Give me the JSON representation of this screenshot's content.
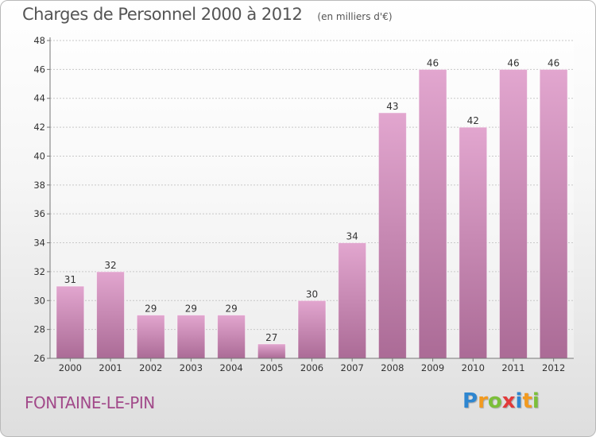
{
  "chart_data": {
    "type": "bar",
    "title": "Charges de Personnel 2000 à 2012",
    "subtitle": "(en milliers d'€)",
    "categories": [
      "2000",
      "2001",
      "2002",
      "2003",
      "2004",
      "2005",
      "2006",
      "2007",
      "2008",
      "2009",
      "2010",
      "2011",
      "2012"
    ],
    "values": [
      31,
      32,
      29,
      29,
      29,
      27,
      30,
      34,
      43,
      46,
      42,
      46,
      46
    ],
    "xlabel": "",
    "ylabel": "",
    "ylim": [
      26,
      48
    ],
    "yticks": [
      26,
      28,
      30,
      32,
      34,
      36,
      38,
      40,
      42,
      44,
      46,
      48
    ],
    "grid": true,
    "bar_color": "#c77aa8"
  },
  "footer": {
    "place_name": "FONTAINE-LE-PIN",
    "brand_letters": [
      "P",
      "r",
      "o",
      "x",
      "i",
      "t",
      "i"
    ],
    "brand_colors": [
      "#2e86d0",
      "#f29a1f",
      "#7cbf3a",
      "#e23a3a",
      "#2e86d0",
      "#f29a1f",
      "#7cbf3a"
    ]
  }
}
